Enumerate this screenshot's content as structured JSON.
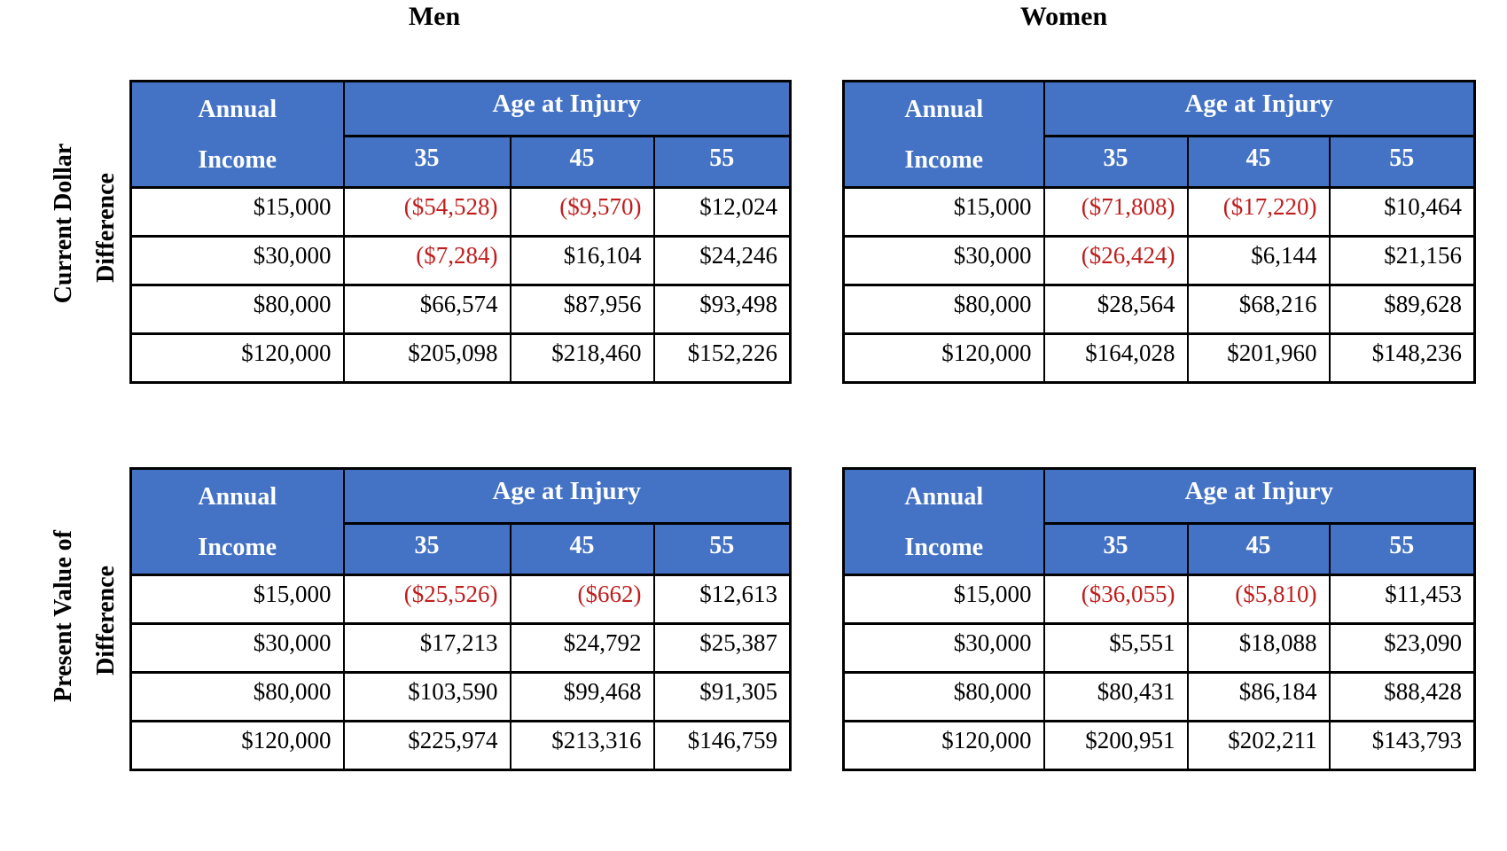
{
  "titles": {
    "men": "Men",
    "women": "Women"
  },
  "row_groups": {
    "top": {
      "line1": "Current Dollar",
      "line2": "Difference"
    },
    "bottom": {
      "line1": "Present Value of",
      "line2": "Difference"
    }
  },
  "header": {
    "income_line1": "Annual",
    "income_line2": "Income",
    "age_at_injury": "Age at Injury",
    "ages": [
      "35",
      "45",
      "55"
    ]
  },
  "colors": {
    "header_blue": "#4472C4",
    "header_text": "#FFFFFF",
    "body_text": "#000000",
    "negative_red": "#C01E1E"
  },
  "chart_data": [
    {
      "type": "table",
      "title": "Men - Current Dollar Difference",
      "gender": "Men",
      "measure": "Current Dollar Difference",
      "columns": [
        "Annual Income",
        "35",
        "45",
        "55"
      ],
      "rows": [
        [
          "$15,000",
          "($54,528)",
          "($9,570)",
          "$12,024"
        ],
        [
          "$30,000",
          "($7,284)",
          "$16,104",
          "$24,246"
        ],
        [
          "$80,000",
          "$66,574",
          "$87,956",
          "$93,498"
        ],
        [
          "$120,000",
          "$205,098",
          "$218,460",
          "$152,226"
        ]
      ]
    },
    {
      "type": "table",
      "title": "Women - Current Dollar Difference",
      "gender": "Women",
      "measure": "Current Dollar Difference",
      "columns": [
        "Annual Income",
        "35",
        "45",
        "55"
      ],
      "rows": [
        [
          "$15,000",
          "($71,808)",
          "($17,220)",
          "$10,464"
        ],
        [
          "$30,000",
          "($26,424)",
          "$6,144",
          "$21,156"
        ],
        [
          "$80,000",
          "$28,564",
          "$68,216",
          "$89,628"
        ],
        [
          "$120,000",
          "$164,028",
          "$201,960",
          "$148,236"
        ]
      ]
    },
    {
      "type": "table",
      "title": "Men - Present Value of Difference",
      "gender": "Men",
      "measure": "Present Value of Difference",
      "columns": [
        "Annual Income",
        "35",
        "45",
        "55"
      ],
      "rows": [
        [
          "$15,000",
          "($25,526)",
          "($662)",
          "$12,613"
        ],
        [
          "$30,000",
          "$17,213",
          "$24,792",
          "$25,387"
        ],
        [
          "$80,000",
          "$103,590",
          "$99,468",
          "$91,305"
        ],
        [
          "$120,000",
          "$225,974",
          "$213,316",
          "$146,759"
        ]
      ]
    },
    {
      "type": "table",
      "title": "Women - Present Value of Difference",
      "gender": "Women",
      "measure": "Present Value of Difference",
      "columns": [
        "Annual Income",
        "35",
        "45",
        "55"
      ],
      "rows": [
        [
          "$15,000",
          "($36,055)",
          "($5,810)",
          "$11,453"
        ],
        [
          "$30,000",
          "$5,551",
          "$18,088",
          "$23,090"
        ],
        [
          "$80,000",
          "$80,431",
          "$86,184",
          "$88,428"
        ],
        [
          "$120,000",
          "$200,951",
          "$202,211",
          "$143,793"
        ]
      ]
    }
  ]
}
